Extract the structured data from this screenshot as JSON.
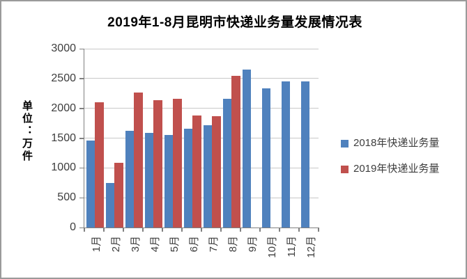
{
  "chart_data": {
    "type": "bar",
    "title": "2019年1-8月昆明市快递业务量发展情况表",
    "ylabel": "单位：万件",
    "xlabel": "",
    "categories": [
      "1月",
      "2月",
      "3月",
      "4月",
      "5月",
      "6月",
      "7月",
      "8月",
      "9月",
      "10月",
      "11月",
      "12月"
    ],
    "series": [
      {
        "name": "2018年快递业务量",
        "color": "#4F81BD",
        "values": [
          1460,
          750,
          1620,
          1590,
          1550,
          1660,
          1720,
          2160,
          2650,
          2330,
          2450,
          2450
        ]
      },
      {
        "name": "2019年快递业务量",
        "color": "#C0504D",
        "values": [
          2100,
          1090,
          2260,
          2140,
          2160,
          1880,
          1870,
          2540,
          null,
          null,
          null,
          null
        ]
      }
    ],
    "ylim": [
      0,
      3000
    ],
    "ytick_step": 500,
    "yticks": [
      0,
      500,
      1000,
      1500,
      2000,
      2500,
      3000
    ],
    "grid": true,
    "legend_position": "right",
    "colors": {
      "axis": "#808080",
      "gridline": "#c8c8c8",
      "tick_text": "#3d3d3d",
      "frame_border": "#9a9a9a",
      "background": "#ffffff"
    }
  }
}
